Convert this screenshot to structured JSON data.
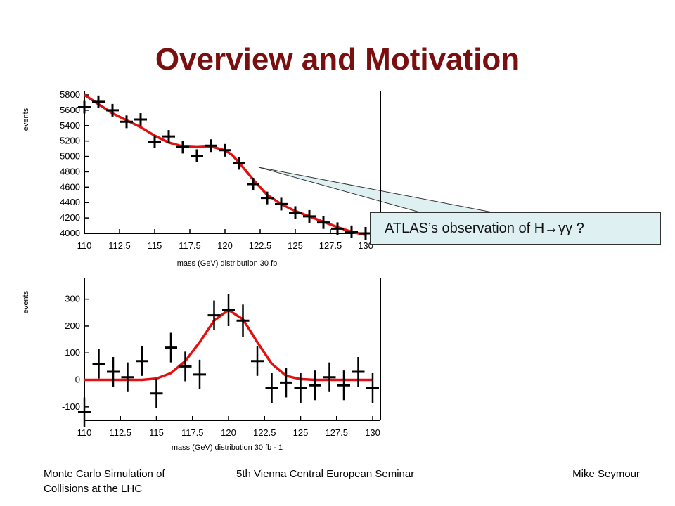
{
  "slide": {
    "title": "Overview and Motivation",
    "callout": "ATLAS’s observation of H→γγ ?",
    "footer": {
      "left": "Monte Carlo Simulation of\nCollisions at the LHC",
      "center": "5th Vienna Central European Seminar",
      "right": "Mike Seymour"
    }
  },
  "chart_data": [
    {
      "type": "scatter",
      "xlabel": "mass (GeV)  distribution 30 fb",
      "ylabel": "events",
      "xlim": [
        110,
        130
      ],
      "ylim": [
        4000,
        5800
      ],
      "x_ticks": [
        "110",
        "112.5",
        "115",
        "117.5",
        "120",
        "122.5",
        "125",
        "127.5",
        "130"
      ],
      "y_ticks": [
        "4000",
        "4200",
        "4400",
        "4600",
        "4800",
        "5000",
        "5200",
        "5400",
        "5600",
        "5800"
      ],
      "series": [
        {
          "x": [
            110,
            111,
            112,
            113,
            114,
            115,
            116,
            117,
            118,
            119,
            120,
            121,
            122,
            123,
            124,
            125,
            126,
            127,
            128,
            129,
            130
          ],
          "y": [
            5640,
            5710,
            5600,
            5450,
            5480,
            5190,
            5260,
            5120,
            5010,
            5140,
            5080,
            4910,
            4640,
            4460,
            4380,
            4270,
            4220,
            4140,
            4060,
            4020,
            4000
          ]
        },
        {
          "type": "line",
          "x": [
            110,
            112,
            114,
            115,
            116,
            117,
            118,
            119,
            120,
            120.5,
            121,
            122,
            123,
            124,
            125,
            126,
            127,
            128,
            129,
            130
          ],
          "y": [
            5800,
            5560,
            5380,
            5270,
            5180,
            5130,
            5120,
            5130,
            5080,
            5020,
            4920,
            4700,
            4500,
            4380,
            4290,
            4220,
            4150,
            4080,
            4020,
            3980
          ]
        }
      ]
    },
    {
      "type": "scatter",
      "xlabel": "mass (GeV)  distribution 30 fb - 1",
      "ylabel": "events",
      "xlim": [
        110,
        130
      ],
      "ylim": [
        -150,
        380
      ],
      "x_ticks": [
        "110",
        "112.5",
        "115",
        "117.5",
        "120",
        "122.5",
        "125",
        "127.5",
        "130"
      ],
      "y_ticks": [
        "-100",
        "0",
        "100",
        "200",
        "300"
      ],
      "series": [
        {
          "x": [
            110,
            111,
            112,
            113,
            114,
            115,
            116,
            117,
            118,
            119,
            120,
            121,
            122,
            123,
            124,
            125,
            126,
            127,
            128,
            129,
            130
          ],
          "y": [
            -120,
            60,
            30,
            10,
            70,
            -50,
            120,
            50,
            20,
            240,
            260,
            220,
            70,
            -30,
            -10,
            -30,
            -20,
            10,
            -20,
            30,
            -30
          ],
          "err": [
            55,
            55,
            55,
            55,
            55,
            55,
            55,
            55,
            55,
            55,
            60,
            60,
            55,
            55,
            55,
            55,
            55,
            55,
            55,
            55,
            55
          ]
        },
        {
          "type": "line",
          "x": [
            110,
            114,
            115,
            116,
            117,
            118,
            119,
            120,
            121,
            122,
            123,
            124,
            125,
            126,
            130
          ],
          "y": [
            0,
            0,
            5,
            25,
            70,
            140,
            220,
            260,
            225,
            140,
            60,
            15,
            3,
            0,
            0
          ]
        }
      ]
    }
  ]
}
